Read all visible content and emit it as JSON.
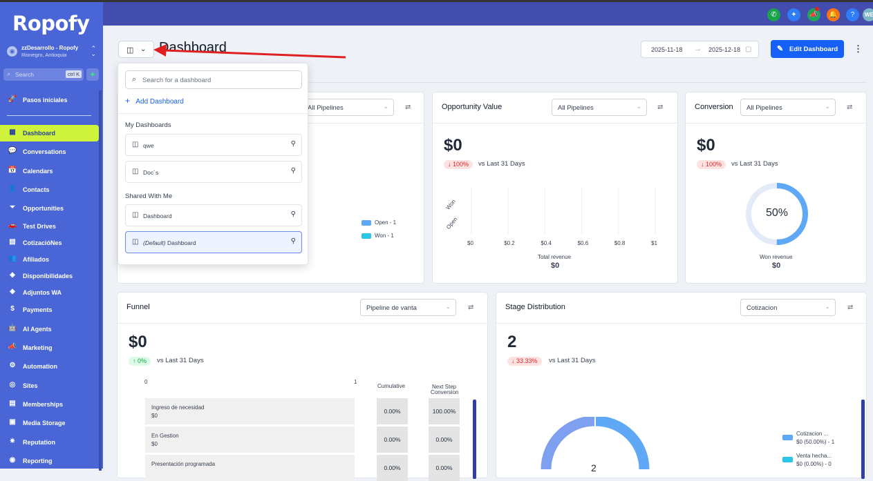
{
  "sidebar": {
    "logo": "Ropofy",
    "account_name": "zzDesarrollo - Ropofy",
    "account_location": "Rionegro, Antioquia",
    "search_placeholder": "Search",
    "search_shortcut": "ctrl K",
    "items": [
      {
        "label": "Pasos iniciales",
        "icon": "rocket-icon",
        "glyph": "🚀"
      },
      {
        "label": "Dashboard",
        "icon": "dashboard-icon",
        "glyph": "▦",
        "active": true
      },
      {
        "label": "Conversations",
        "icon": "chat-icon",
        "glyph": "💬"
      },
      {
        "label": "Calendars",
        "icon": "calendar-icon",
        "glyph": "📅"
      },
      {
        "label": "Contacts",
        "icon": "contacts-icon",
        "glyph": "👤"
      },
      {
        "label": "Opportunities",
        "icon": "filter-icon",
        "glyph": "⏷"
      },
      {
        "label": "Test Drives",
        "icon": "car-icon",
        "glyph": "🚗"
      },
      {
        "label": "CotizacióNes",
        "icon": "quote-icon",
        "glyph": "▤"
      },
      {
        "label": "Afiliados",
        "icon": "affiliates-icon",
        "glyph": "👥"
      },
      {
        "label": "Disponibilidades",
        "icon": "availability-icon",
        "glyph": "◈"
      },
      {
        "label": "Adjuntos WA",
        "icon": "attachments-icon",
        "glyph": "◈"
      },
      {
        "label": "Payments",
        "icon": "dollar-icon",
        "glyph": "$"
      },
      {
        "label": "AI Agents",
        "icon": "robot-icon",
        "glyph": "🤖"
      },
      {
        "label": "Marketing",
        "icon": "megaphone-icon",
        "glyph": "📣"
      },
      {
        "label": "Automation",
        "icon": "automation-icon",
        "glyph": "⚙"
      },
      {
        "label": "Sites",
        "icon": "globe-icon",
        "glyph": "◎"
      },
      {
        "label": "Memberships",
        "icon": "membership-icon",
        "glyph": "▤"
      },
      {
        "label": "Media Storage",
        "icon": "media-icon",
        "glyph": "▣"
      },
      {
        "label": "Reputation",
        "icon": "star-icon",
        "glyph": "✷"
      },
      {
        "label": "Reporting",
        "icon": "chart-icon",
        "glyph": "◉"
      }
    ]
  },
  "topbar": {
    "icons": [
      {
        "name": "phone-icon",
        "glyph": "✆",
        "color": "#19a34a"
      },
      {
        "name": "sparkle-icon",
        "glyph": "✦",
        "color": "#2f7cf6"
      },
      {
        "name": "announcement-icon",
        "glyph": "📣",
        "color": "#22a35a"
      },
      {
        "name": "bell-icon",
        "glyph": "🔔",
        "color": "#f97316"
      },
      {
        "name": "help-icon",
        "glyph": "?",
        "color": "#2f7cf6"
      }
    ],
    "avatar": "WE"
  },
  "header": {
    "title": "Dashboard",
    "date_start": "2025-11-18",
    "date_end": "2025-12-18",
    "edit_button": "Edit Dashboard"
  },
  "dropdown": {
    "search_placeholder": "Search for a dashboard",
    "add_label": "Add Dashboard",
    "my_dashboards_heading": "My Dashboards",
    "my_dashboards": [
      "qwe",
      "Doc´s"
    ],
    "shared_heading": "Shared With Me",
    "shared_dashboard": "Dashboard",
    "default_prefix": "(Default)",
    "default_name": "Dashboard"
  },
  "cards": {
    "first": {
      "pipeline": "All Pipelines",
      "legend": [
        "Open - 1",
        "Won - 1"
      ]
    },
    "opportunity_value": {
      "title": "Opportunity Value",
      "pipeline": "All Pipelines",
      "value": "$0",
      "change": "↓ 100%",
      "vs": "vs Last 31 Days",
      "y_labels": [
        "Won",
        "Open"
      ],
      "x_ticks": [
        "$0",
        "$0.2",
        "$0.4",
        "$0.6",
        "$0.8",
        "$1"
      ],
      "footer_label": "Total revenue",
      "footer_value": "$0"
    },
    "conversion": {
      "title": "Conversion",
      "pipeline": "All Pipelines",
      "value": "$0",
      "change": "↓ 100%",
      "vs": "vs Last 31 Days",
      "percent_label": "50%",
      "percent_value": 0.5,
      "footer_label": "Won revenue",
      "footer_value": "$0"
    },
    "funnel": {
      "title": "Funnel",
      "pipeline": "Pipeline de vanta",
      "value": "$0",
      "change": "↑ 0%",
      "vs": "vs Last 31 Days",
      "axis_start": "0",
      "axis_end": "1",
      "col_cumulative": "Cumulative",
      "col_next_line1": "Next Step",
      "col_next_line2": "Conversion",
      "rows": [
        {
          "name": "Ingreso de necesidad",
          "amount": "$0",
          "cumulative": "0.00%",
          "next": "100.00%"
        },
        {
          "name": "En Gestion",
          "amount": "$0",
          "cumulative": "0.00%",
          "next": "0.00%"
        },
        {
          "name": "Presentación programada",
          "amount": "",
          "cumulative": "0.00%",
          "next": "0.00%"
        }
      ]
    },
    "stage_distribution": {
      "title": "Stage Distribution",
      "pipeline": "Cotizacion",
      "value": "2",
      "change": "↓ 33.33%",
      "vs": "vs Last 31 Days",
      "center_value": "2",
      "legend": [
        {
          "name": "Cotizacion ...",
          "detail": "$0 (50.00%) - 1",
          "color": "#5fa8f5"
        },
        {
          "name": "Venta hecha...",
          "detail": "$0 (0.00%) - 0",
          "color": "#2bc6e6"
        }
      ]
    }
  },
  "colors": {
    "sidebar": "#4a66d6",
    "topbar": "#424dae",
    "accent": "#1660f5",
    "active_nav": "#cff33a",
    "legend_open": "#5fa8f5",
    "legend_won": "#2bc6e6"
  }
}
